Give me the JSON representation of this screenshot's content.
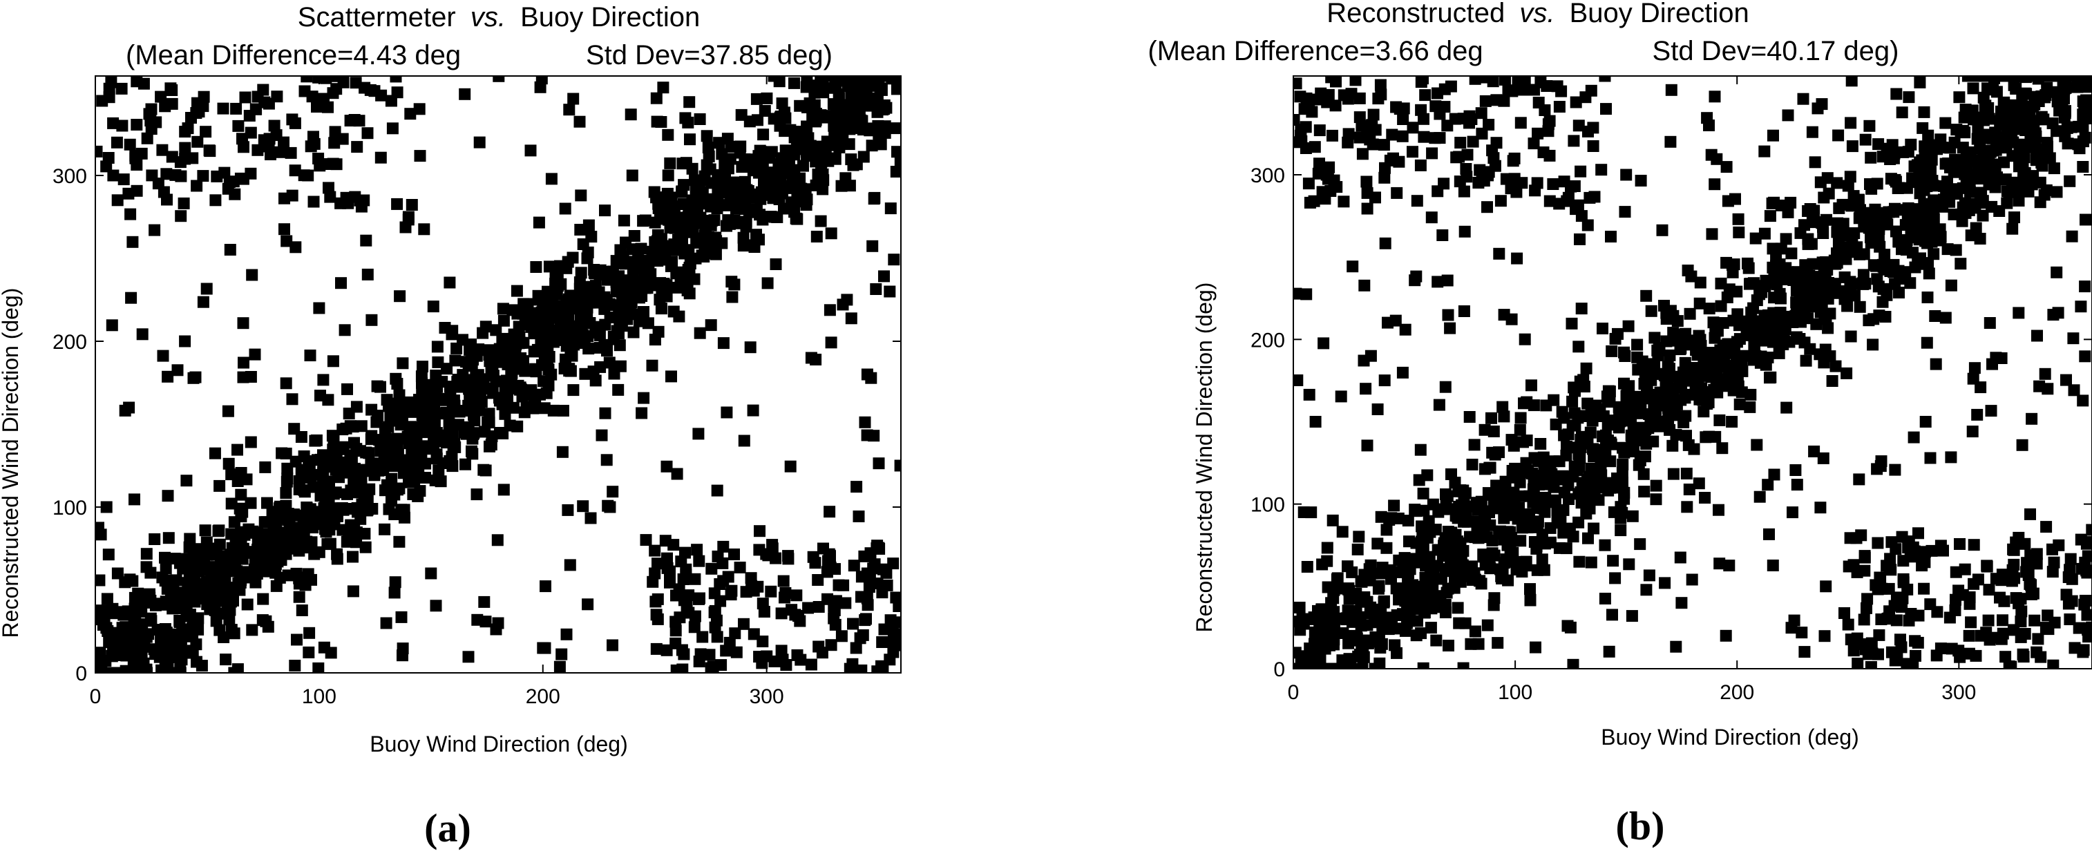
{
  "chart_data": [
    {
      "type": "scatter",
      "panel_label": "a",
      "title_main": "Scattermeter",
      "title_vs": "vs.",
      "title_rest": "Buoy Direction",
      "subtitle_mean": "(Mean Difference=4.43 deg",
      "subtitle_std": "Std Dev=37.85 deg)",
      "xlabel": "Buoy Wind Direction (deg)",
      "ylabel": "Reconstructed Wind Direction (deg)",
      "xlim": [
        0,
        360
      ],
      "ylim": [
        0,
        360
      ],
      "xticks": [
        0,
        100,
        200,
        300
      ],
      "yticks": [
        0,
        100,
        200,
        300
      ],
      "marker": "square",
      "marker_color": "#000000",
      "band": {
        "halfwidth": 22,
        "count": 1500
      },
      "outliers": {
        "count": 560,
        "seed": 11
      },
      "points": [
        [
          3,
          345
        ],
        [
          8,
          300
        ],
        [
          12,
          330
        ],
        [
          25,
          340
        ],
        [
          40,
          310
        ],
        [
          60,
          296
        ],
        [
          80,
          330
        ],
        [
          95,
          300
        ],
        [
          120,
          285
        ],
        [
          140,
          275
        ],
        [
          20,
          5
        ],
        [
          30,
          12
        ],
        [
          300,
          10
        ],
        [
          320,
          5
        ],
        [
          340,
          15
        ],
        [
          355,
          8
        ],
        [
          330,
          40
        ],
        [
          345,
          60
        ],
        [
          250,
          60
        ],
        [
          270,
          45
        ],
        [
          200,
          15
        ],
        [
          180,
          30
        ],
        [
          230,
          100
        ],
        [
          260,
          120
        ],
        [
          290,
          140
        ],
        [
          320,
          190
        ],
        [
          345,
          180
        ],
        [
          355,
          230
        ],
        [
          100,
          220
        ],
        [
          70,
          240
        ],
        [
          40,
          200
        ],
        [
          15,
          160
        ],
        [
          5,
          100
        ],
        [
          10,
          60
        ],
        [
          150,
          60
        ],
        [
          130,
          30
        ],
        [
          115,
          70
        ],
        [
          90,
          20
        ],
        [
          210,
          280
        ],
        [
          240,
          300
        ]
      ]
    },
    {
      "type": "scatter",
      "panel_label": "b",
      "title_main": "Reconstructed",
      "title_vs": "vs.",
      "title_rest": "Buoy Direction",
      "subtitle_mean": "(Mean Difference=3.66 deg",
      "subtitle_std": "Std Dev=40.17 deg)",
      "xlabel": "Buoy Wind Direction (deg)",
      "ylabel": "Reconstructed Wind Direction (deg)",
      "xlim": [
        0,
        360
      ],
      "ylim": [
        0,
        360
      ],
      "xticks": [
        0,
        100,
        200,
        300
      ],
      "yticks": [
        0,
        100,
        200,
        300
      ],
      "marker": "square",
      "marker_color": "#000000",
      "band": {
        "halfwidth": 25,
        "count": 1500
      },
      "outliers": {
        "count": 640,
        "seed": 29
      },
      "points": [
        [
          5,
          340
        ],
        [
          15,
          300
        ],
        [
          30,
          335
        ],
        [
          45,
          310
        ],
        [
          65,
          290
        ],
        [
          85,
          325
        ],
        [
          110,
          295
        ],
        [
          130,
          275
        ],
        [
          150,
          300
        ],
        [
          170,
          320
        ],
        [
          25,
          5
        ],
        [
          40,
          15
        ],
        [
          290,
          8
        ],
        [
          310,
          20
        ],
        [
          335,
          10
        ],
        [
          350,
          30
        ],
        [
          325,
          55
        ],
        [
          345,
          75
        ],
        [
          240,
          50
        ],
        [
          265,
          30
        ],
        [
          195,
          20
        ],
        [
          175,
          40
        ],
        [
          225,
          95
        ],
        [
          255,
          115
        ],
        [
          285,
          150
        ],
        [
          315,
          185
        ],
        [
          340,
          170
        ],
        [
          355,
          220
        ],
        [
          95,
          215
        ],
        [
          65,
          235
        ],
        [
          35,
          190
        ],
        [
          10,
          150
        ],
        [
          8,
          95
        ],
        [
          20,
          55
        ],
        [
          145,
          55
        ],
        [
          125,
          25
        ],
        [
          105,
          65
        ],
        [
          80,
          15
        ],
        [
          215,
          275
        ],
        [
          245,
          295
        ]
      ]
    }
  ]
}
